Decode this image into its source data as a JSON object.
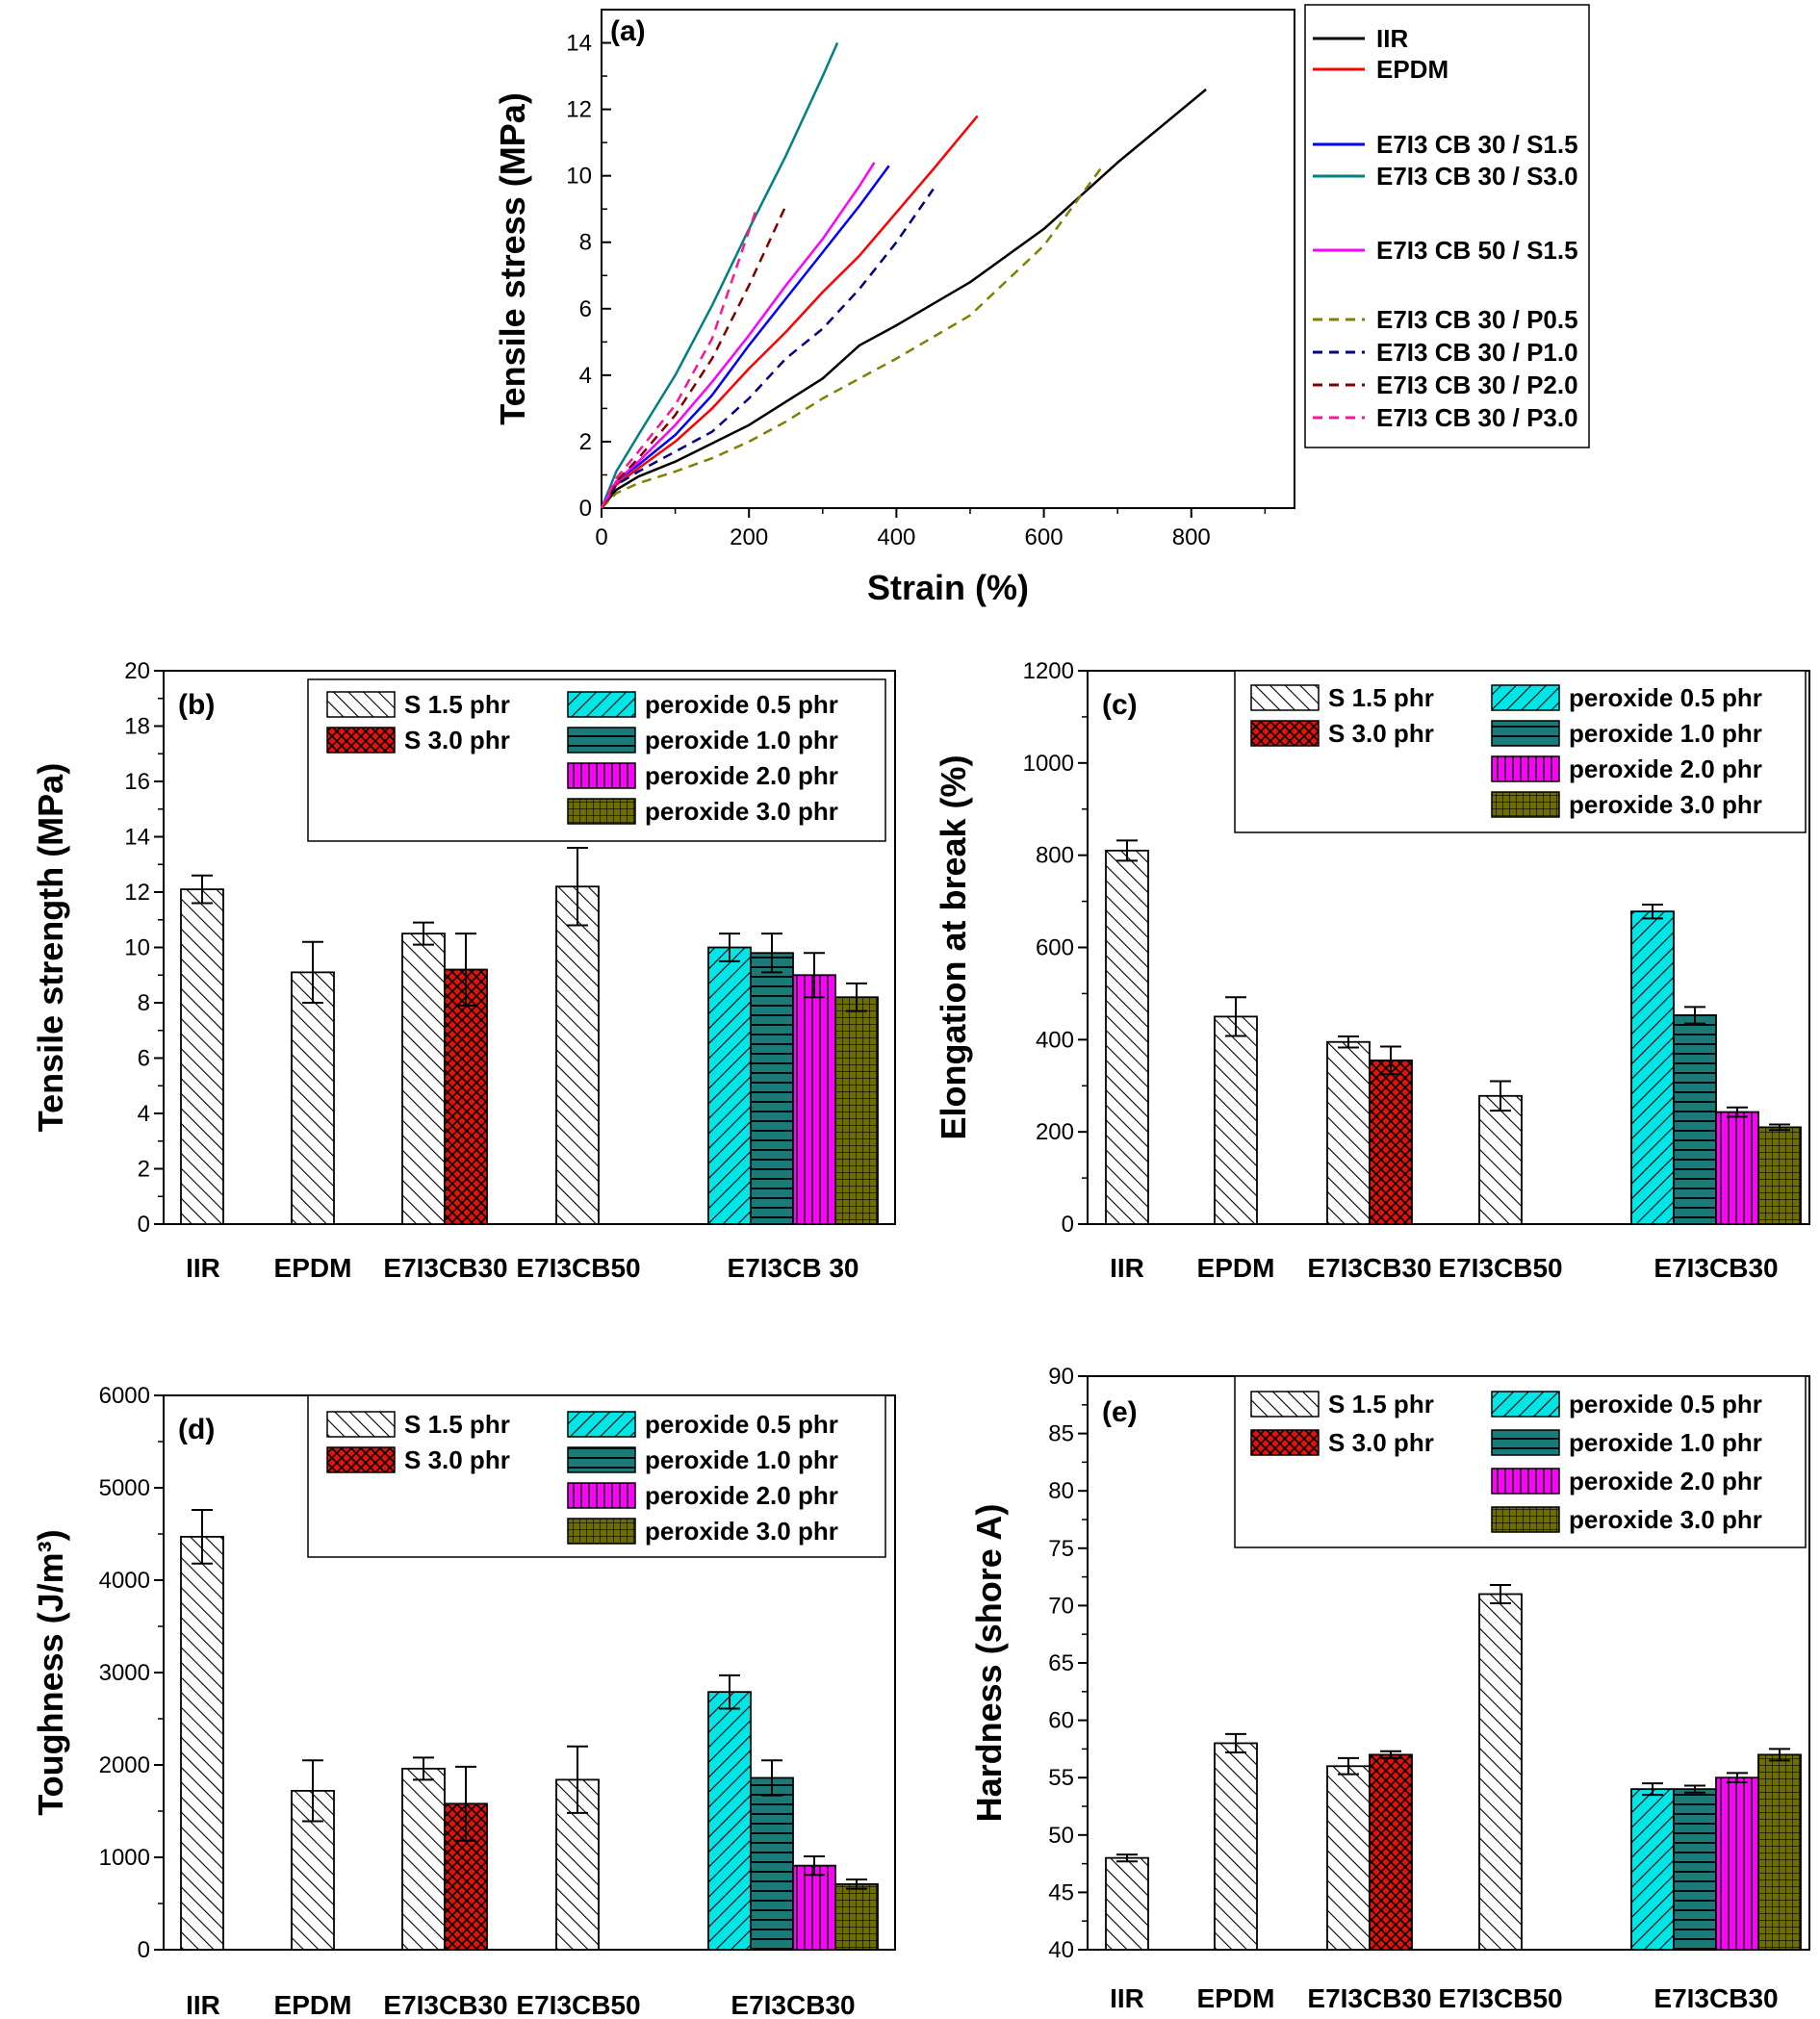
{
  "legend_bars": [
    {
      "label": "S 1.5 phr",
      "color": "#ffffff",
      "pattern": "diag"
    },
    {
      "label": "S 3.0 phr",
      "color": "#e3120b",
      "pattern": "cross"
    },
    {
      "label": "peroxide 0.5 phr",
      "color": "#00e5e5",
      "pattern": "bdiag"
    },
    {
      "label": "peroxide 1.0 phr",
      "color": "#1a7a78",
      "pattern": "hlines"
    },
    {
      "label": "peroxide 2.0 phr",
      "color": "#ff00ff",
      "pattern": "vlines"
    },
    {
      "label": "peroxide 3.0 phr",
      "color": "#6e6e00",
      "pattern": "grid"
    }
  ],
  "chart_data": [
    {
      "id": "a",
      "panel_label": "(a)",
      "type": "line",
      "xlabel": "Strain (%)",
      "ylabel": "Tensile stress (MPa)",
      "xlim": [
        0,
        940
      ],
      "ylim": [
        0,
        15
      ],
      "xticks": [
        0,
        200,
        400,
        600,
        800
      ],
      "yticks": [
        0,
        2,
        4,
        6,
        8,
        10,
        12,
        14
      ],
      "series": [
        {
          "name": "IIR",
          "color": "#000000",
          "dash": false,
          "x": [
            0,
            20,
            50,
            100,
            150,
            200,
            300,
            350,
            400,
            500,
            600,
            700,
            820
          ],
          "y": [
            0,
            0.55,
            0.95,
            1.4,
            1.95,
            2.5,
            3.9,
            4.9,
            5.5,
            6.8,
            8.4,
            10.4,
            12.6
          ]
        },
        {
          "name": "EPDM",
          "color": "#ff0000",
          "dash": false,
          "x": [
            0,
            20,
            50,
            100,
            150,
            200,
            250,
            300,
            350,
            400,
            450,
            510
          ],
          "y": [
            0,
            0.7,
            1.2,
            2.0,
            3.0,
            4.2,
            5.3,
            6.5,
            7.6,
            8.9,
            10.2,
            11.8
          ]
        },
        {
          "name": "E7I3 CB 30 / S1.5",
          "color": "#0000ff",
          "dash": false,
          "x": [
            0,
            20,
            50,
            100,
            150,
            200,
            250,
            300,
            350,
            390
          ],
          "y": [
            0,
            0.8,
            1.3,
            2.2,
            3.4,
            4.9,
            6.3,
            7.7,
            9.1,
            10.3
          ]
        },
        {
          "name": "E7I3 CB 30 / S3.0",
          "color": "#008080",
          "dash": false,
          "x": [
            0,
            20,
            50,
            100,
            150,
            200,
            250,
            300,
            320
          ],
          "y": [
            0,
            1.1,
            2.2,
            4.0,
            6.1,
            8.4,
            10.6,
            13.0,
            14.0
          ]
        },
        {
          "name": "E7I3 CB 50 / S1.5",
          "color": "#ff00ff",
          "dash": false,
          "x": [
            0,
            20,
            50,
            100,
            150,
            200,
            250,
            300,
            350,
            370
          ],
          "y": [
            0,
            0.8,
            1.4,
            2.5,
            3.8,
            5.2,
            6.7,
            8.1,
            9.7,
            10.4
          ]
        },
        {
          "name": "",
          "color": "#ffffff",
          "dash": false,
          "x": [],
          "y": []
        },
        {
          "name": "E7I3 CB 30 / P0.5",
          "color": "#808000",
          "dash": true,
          "x": [
            0,
            20,
            50,
            100,
            150,
            200,
            250,
            300,
            400,
            500,
            600,
            680
          ],
          "y": [
            0,
            0.45,
            0.75,
            1.1,
            1.5,
            2.0,
            2.6,
            3.3,
            4.5,
            5.8,
            7.9,
            10.3
          ]
        },
        {
          "name": "E7I3 CB 30 / P1.0",
          "color": "#000080",
          "dash": true,
          "x": [
            0,
            20,
            50,
            100,
            150,
            200,
            250,
            300,
            350,
            400,
            450
          ],
          "y": [
            0,
            0.7,
            1.1,
            1.7,
            2.3,
            3.3,
            4.5,
            5.4,
            6.6,
            8.0,
            9.6
          ]
        },
        {
          "name": "E7I3 CB 30 / P2.0",
          "color": "#800000",
          "dash": true,
          "x": [
            0,
            20,
            50,
            100,
            150,
            200,
            250
          ],
          "y": [
            0,
            0.8,
            1.5,
            2.8,
            4.5,
            6.7,
            9.1
          ]
        },
        {
          "name": "E7I3 CB 30 / P3.0",
          "color": "#ff1493",
          "dash": true,
          "x": [
            0,
            20,
            50,
            100,
            150,
            210
          ],
          "y": [
            0,
            0.9,
            1.7,
            3.1,
            5.1,
            9.0
          ]
        }
      ]
    },
    {
      "id": "b",
      "panel_label": "(b)",
      "type": "bar",
      "ylabel": "Tensile strength (MPa)",
      "ylim": [
        0,
        20
      ],
      "yticks": [
        0,
        2,
        4,
        6,
        8,
        10,
        12,
        14,
        16,
        18,
        20
      ],
      "categories": [
        "IIR",
        "EPDM",
        "E7I3CB30",
        "E7I3CB50",
        "E7I3CB 30"
      ],
      "bars": [
        {
          "category": "IIR",
          "series": "S 1.5 phr",
          "value": 12.1,
          "error": 0.5
        },
        {
          "category": "EPDM",
          "series": "S 1.5 phr",
          "value": 9.1,
          "error": 1.1
        },
        {
          "category": "E7I3CB30",
          "series": "S 1.5 phr",
          "value": 10.5,
          "error": 0.4
        },
        {
          "category": "E7I3CB30",
          "series": "S 3.0 phr",
          "value": 9.2,
          "error": 1.3
        },
        {
          "category": "E7I3CB50",
          "series": "S 1.5 phr",
          "value": 12.2,
          "error": 1.4
        },
        {
          "category": "E7I3CB 30",
          "series": "peroxide 0.5 phr",
          "value": 10.0,
          "error": 0.5
        },
        {
          "category": "E7I3CB 30",
          "series": "peroxide 1.0 phr",
          "value": 9.8,
          "error": 0.7
        },
        {
          "category": "E7I3CB 30",
          "series": "peroxide 2.0 phr",
          "value": 9.0,
          "error": 0.8
        },
        {
          "category": "E7I3CB 30",
          "series": "peroxide 3.0 phr",
          "value": 8.2,
          "error": 0.5
        }
      ]
    },
    {
      "id": "c",
      "panel_label": "(c)",
      "type": "bar",
      "ylabel": "Elongation at break (%)",
      "ylim": [
        0,
        1200
      ],
      "yticks": [
        0,
        200,
        400,
        600,
        800,
        1000,
        1200
      ],
      "categories": [
        "IIR",
        "EPDM",
        "E7I3CB30",
        "E7I3CB50",
        "E7I3CB30"
      ],
      "bars": [
        {
          "category": "IIR",
          "series": "S 1.5 phr",
          "value": 810,
          "error": 22
        },
        {
          "category": "EPDM",
          "series": "S 1.5 phr",
          "value": 450,
          "error": 42
        },
        {
          "category": "E7I3CB30",
          "series": "S 1.5 phr",
          "value": 395,
          "error": 12
        },
        {
          "category": "E7I3CB30",
          "series": "S 3.0 phr",
          "value": 355,
          "error": 30
        },
        {
          "category": "E7I3CB50",
          "series": "S 1.5 phr",
          "value": 278,
          "error": 32
        },
        {
          "category": "E7I3CB30",
          "series": "peroxide 0.5 phr",
          "value": 678,
          "error": 15
        },
        {
          "category": "E7I3CB30",
          "series": "peroxide 1.0 phr",
          "value": 453,
          "error": 18
        },
        {
          "category": "E7I3CB30",
          "series": "peroxide 2.0 phr",
          "value": 243,
          "error": 10
        },
        {
          "category": "E7I3CB30",
          "series": "peroxide 3.0 phr",
          "value": 210,
          "error": 6
        }
      ]
    },
    {
      "id": "d",
      "panel_label": "(d)",
      "type": "bar",
      "ylabel": "Toughness (J/m³)",
      "ylim": [
        0,
        6000
      ],
      "yticks": [
        0,
        1000,
        2000,
        3000,
        4000,
        5000,
        6000
      ],
      "categories": [
        "IIR",
        "EPDM",
        "E7I3CB30",
        "E7I3CB50",
        "E7I3CB30"
      ],
      "bars": [
        {
          "category": "IIR",
          "series": "S 1.5 phr",
          "value": 4470,
          "error": 290
        },
        {
          "category": "EPDM",
          "series": "S 1.5 phr",
          "value": 1720,
          "error": 330
        },
        {
          "category": "E7I3CB30",
          "series": "S 1.5 phr",
          "value": 1960,
          "error": 120
        },
        {
          "category": "E7I3CB30",
          "series": "S 3.0 phr",
          "value": 1580,
          "error": 400
        },
        {
          "category": "E7I3CB50",
          "series": "S 1.5 phr",
          "value": 1840,
          "error": 360
        },
        {
          "category": "E7I3CB30",
          "series": "peroxide 0.5 phr",
          "value": 2790,
          "error": 180
        },
        {
          "category": "E7I3CB30",
          "series": "peroxide 1.0 phr",
          "value": 1860,
          "error": 190
        },
        {
          "category": "E7I3CB30",
          "series": "peroxide 2.0 phr",
          "value": 910,
          "error": 100
        },
        {
          "category": "E7I3CB30",
          "series": "peroxide 3.0 phr",
          "value": 710,
          "error": 50
        }
      ]
    },
    {
      "id": "e",
      "panel_label": "(e)",
      "type": "bar",
      "ylabel": "Hardness (shore A)",
      "ylim": [
        40,
        90
      ],
      "yticks": [
        40,
        45,
        50,
        55,
        60,
        65,
        70,
        75,
        80,
        85,
        90
      ],
      "categories": [
        "IIR",
        "EPDM",
        "E7I3CB30",
        "E7I3CB50",
        "E7I3CB30"
      ],
      "bars": [
        {
          "category": "IIR",
          "series": "S 1.5 phr",
          "value": 48.0,
          "error": 0.3
        },
        {
          "category": "EPDM",
          "series": "S 1.5 phr",
          "value": 58.0,
          "error": 0.8
        },
        {
          "category": "E7I3CB30",
          "series": "S 1.5 phr",
          "value": 56.0,
          "error": 0.7
        },
        {
          "category": "E7I3CB30",
          "series": "S 3.0 phr",
          "value": 57.0,
          "error": 0.3
        },
        {
          "category": "E7I3CB50",
          "series": "S 1.5 phr",
          "value": 71.0,
          "error": 0.8
        },
        {
          "category": "E7I3CB30",
          "series": "peroxide 0.5 phr",
          "value": 54.0,
          "error": 0.5
        },
        {
          "category": "E7I3CB30",
          "series": "peroxide 1.0 phr",
          "value": 54.0,
          "error": 0.3
        },
        {
          "category": "E7I3CB30",
          "series": "peroxide 2.0 phr",
          "value": 55.0,
          "error": 0.4
        },
        {
          "category": "E7I3CB30",
          "series": "peroxide 3.0 phr",
          "value": 57.0,
          "error": 0.5
        }
      ]
    }
  ]
}
